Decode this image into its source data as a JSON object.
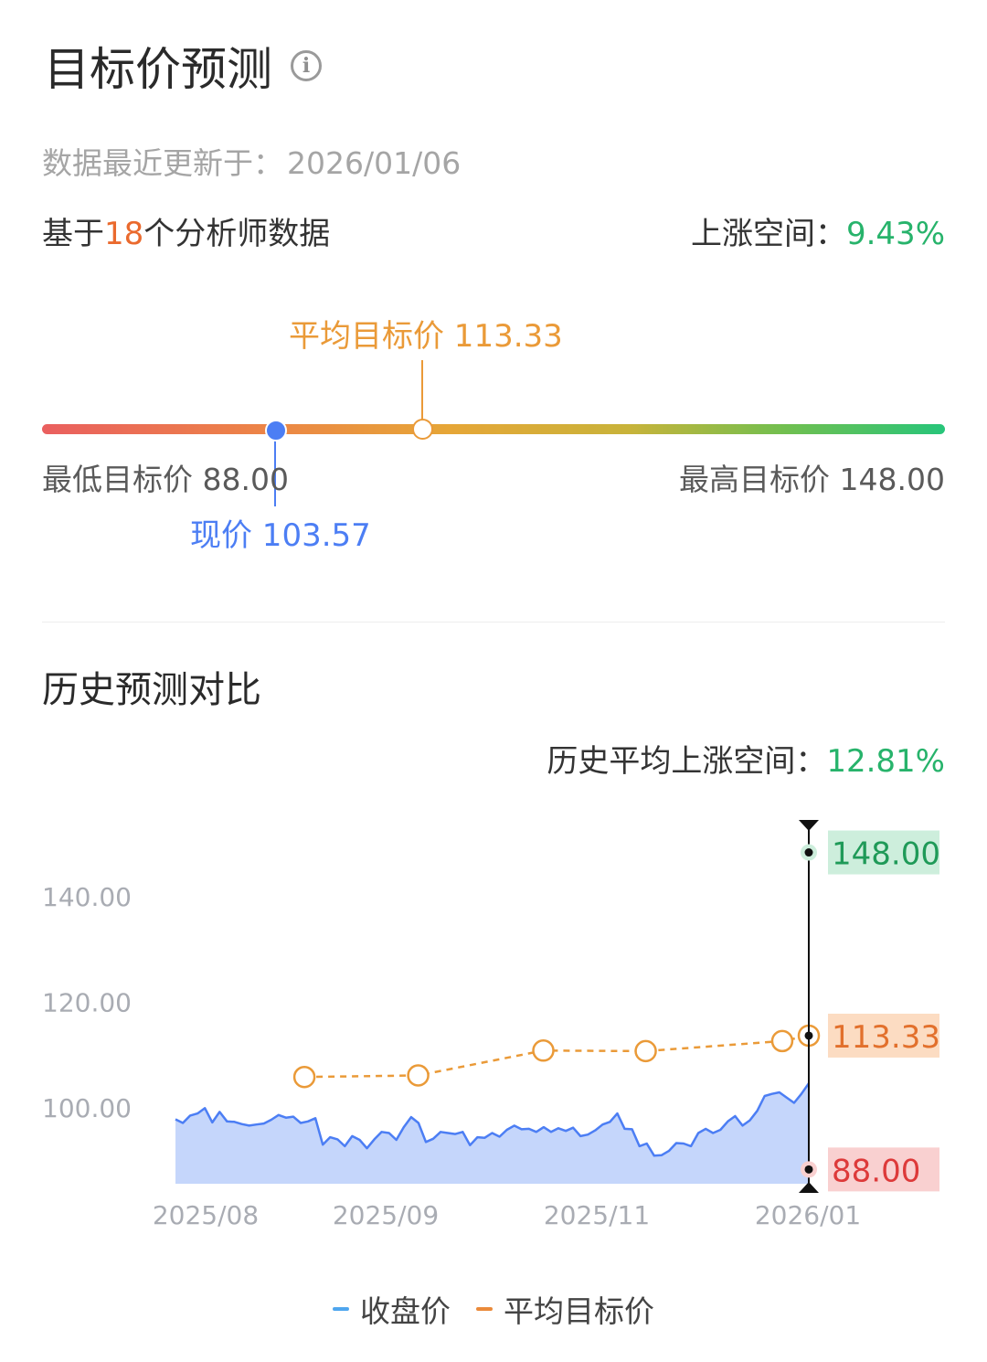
{
  "header": {
    "title": "目标价预测",
    "info_icon": "info-icon"
  },
  "updated": {
    "label": "数据最近更新于：",
    "date": "2026/01/06"
  },
  "analysts": {
    "prefix": "基于",
    "count": "18",
    "suffix": "个分析师数据"
  },
  "upside": {
    "label": "上涨空间：",
    "value": "9.43%"
  },
  "range": {
    "min_label": "最低目标价 88.00",
    "max_label": "最高目标价 148.00",
    "avg_label": "平均目标价 113.33",
    "current_label": "现价 103.57",
    "min": 88.0,
    "max": 148.0,
    "avg": 113.33,
    "current": 103.57
  },
  "history": {
    "title": "历史预测对比",
    "upside_label": "历史平均上涨空间：",
    "upside_value": "12.81%"
  },
  "legend": {
    "close": "收盘价",
    "avg_target": "平均目标价"
  },
  "colors": {
    "close_line": "#4c7ef4",
    "close_fill": "#c5d6fb",
    "avg": "#ea9a38",
    "high_bg": "#cdeedc",
    "high_text": "#1f9a58",
    "mid_bg": "#fcdcc2",
    "mid_text": "#e2702c",
    "low_bg": "#f9d0d0",
    "low_text": "#dd3a3a"
  },
  "chart_data": {
    "type": "line",
    "y_ticks": [
      "140.00",
      "120.00",
      "100.00"
    ],
    "x_ticks": [
      "2025/08",
      "2025/09",
      "2025/11",
      "2026/01"
    ],
    "ylim": [
      85,
      153
    ],
    "series": [
      {
        "name": "收盘价",
        "type": "area",
        "values": [
          97.5,
          96.8,
          98.2,
          98.6,
          99.6,
          96.9,
          98.9,
          97.1,
          97.0,
          96.6,
          96.3,
          96.5,
          96.7,
          97.4,
          98.3,
          97.8,
          98.0,
          96.8,
          97.1,
          97.7,
          92.7,
          94.1,
          93.7,
          92.4,
          94.3,
          93.6,
          92.0,
          93.7,
          95.1,
          94.9,
          93.6,
          96.0,
          97.9,
          96.8,
          93.2,
          93.8,
          95.1,
          94.9,
          94.7,
          95.1,
          92.6,
          94.1,
          94.0,
          94.9,
          94.2,
          95.5,
          96.3,
          95.6,
          95.7,
          95.1,
          96.0,
          95.1,
          95.8,
          95.3,
          95.9,
          94.3,
          94.6,
          95.4,
          96.5,
          97.0,
          98.6,
          95.7,
          95.6,
          92.4,
          92.9,
          90.6,
          90.7,
          91.5,
          93.0,
          92.9,
          92.4,
          94.9,
          95.7,
          94.9,
          95.5,
          97.1,
          98.1,
          96.3,
          97.3,
          99.1,
          101.9,
          102.3,
          102.6,
          101.6,
          100.6,
          102.3,
          104.3
        ],
        "x_range": [
          "2025/07/23",
          "2026/01/06"
        ]
      },
      {
        "name": "平均目标价",
        "type": "line",
        "points": [
          {
            "x": "2025/08/26",
            "y": 105.5
          },
          {
            "x": "2025/09/25",
            "y": 105.8
          },
          {
            "x": "2025/10/28",
            "y": 110.5
          },
          {
            "x": "2025/11/24",
            "y": 110.4
          },
          {
            "x": "2025/12/30",
            "y": 112.3
          },
          {
            "x": "2026/01/06",
            "y": 113.33
          }
        ]
      }
    ],
    "markers": {
      "high": "148.00",
      "mid": "113.33",
      "low": "88.00"
    }
  }
}
